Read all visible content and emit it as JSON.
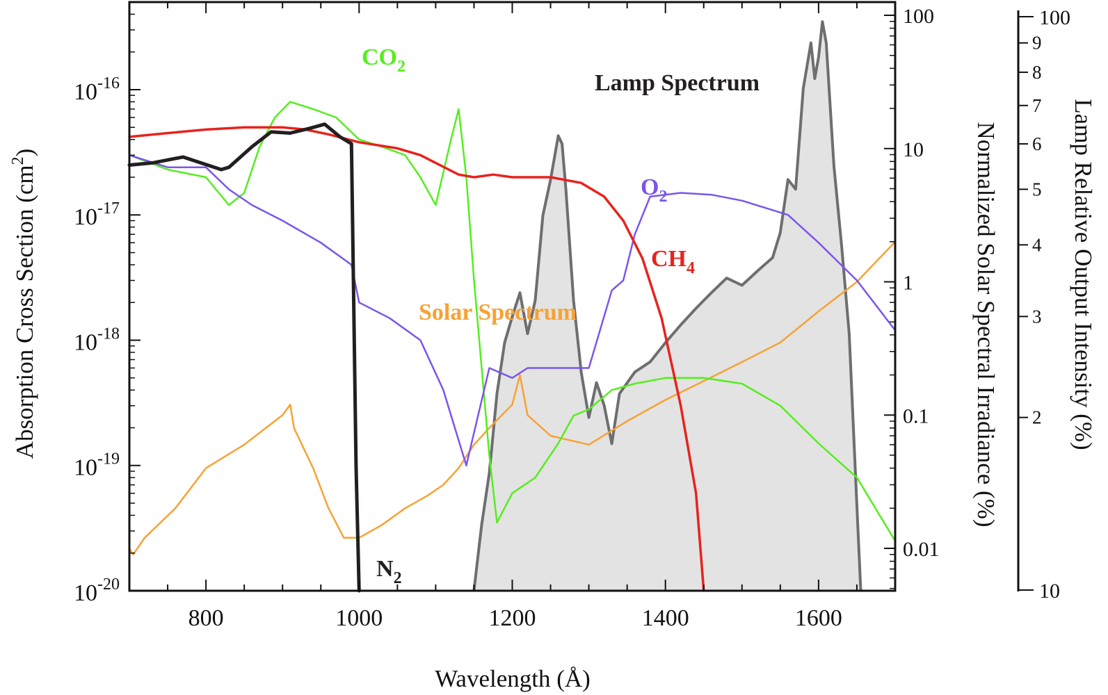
{
  "chart_data": {
    "type": "line",
    "title": "",
    "xlabel": "Wavelength (Å)",
    "ylabel_left": "Absorption Cross Section (cm2)",
    "ylabel_left_parts": {
      "text": "Absorption Cross Section (cm",
      "sup": "2",
      "close": ")"
    },
    "ylabel_right": "Normalized Solar Spectral Irradiance (%)",
    "ylabel_right2": "Lamp Relative Output Intensity (%)",
    "xlim": [
      700,
      1700
    ],
    "ylim_left": [
      1e-20,
      5e-16
    ],
    "ylim_right": [
      0.005,
      100
    ],
    "ylim_right2": [
      10,
      100
    ],
    "x_ticks": [
      800,
      1000,
      1200,
      1400,
      1600
    ],
    "left_ticks": [
      {
        "value": 1e-16,
        "base": "10",
        "exp": "-16"
      },
      {
        "value": 1e-17,
        "base": "10",
        "exp": "-17"
      },
      {
        "value": 1e-18,
        "base": "10",
        "exp": "-18"
      },
      {
        "value": 1e-19,
        "base": "10",
        "exp": "-19"
      },
      {
        "value": 1e-20,
        "base": "10",
        "exp": "-20"
      }
    ],
    "right_ticks": [
      {
        "value": 100,
        "label": "100"
      },
      {
        "value": 10,
        "label": "10"
      },
      {
        "value": 1,
        "label": "1"
      },
      {
        "value": 0.1,
        "label": "0.1"
      },
      {
        "value": 0.01,
        "label": "0.01"
      }
    ],
    "right2_ticks": [
      {
        "value": 100,
        "label": "100"
      },
      {
        "value": 90,
        "label": "9"
      },
      {
        "value": 80,
        "label": "8"
      },
      {
        "value": 70,
        "label": "7"
      },
      {
        "value": 60,
        "label": "6"
      },
      {
        "value": 50,
        "label": "5"
      },
      {
        "value": 40,
        "label": "4"
      },
      {
        "value": 30,
        "label": "3"
      },
      {
        "value": 20,
        "label": "2"
      },
      {
        "value": 10,
        "label": "10"
      }
    ],
    "series": [
      {
        "name": "N2",
        "axis": "left",
        "color": "#231f20",
        "x": [
          700,
          730,
          770,
          820,
          830,
          860,
          885,
          910,
          935,
          955,
          975,
          990,
          996,
          1000
        ],
        "y": [
          2.5e-17,
          2.6e-17,
          2.9e-17,
          2.3e-17,
          2.4e-17,
          3.5e-17,
          4.6e-17,
          4.5e-17,
          4.9e-17,
          5.3e-17,
          4.2e-17,
          3.7e-17,
          1e-19,
          1e-20
        ]
      },
      {
        "name": "CH4",
        "axis": "left",
        "color": "#e8221c",
        "x": [
          700,
          750,
          800,
          850,
          900,
          930,
          960,
          1000,
          1050,
          1080,
          1100,
          1130,
          1150,
          1175,
          1200,
          1250,
          1290,
          1320,
          1345,
          1370,
          1395,
          1420,
          1440,
          1450
        ],
        "y": [
          4.2e-17,
          4.5e-17,
          4.8e-17,
          5e-17,
          5e-17,
          4.8e-17,
          4.4e-17,
          3.8e-17,
          3.4e-17,
          3e-17,
          2.6e-17,
          2.1e-17,
          2e-17,
          2.1e-17,
          2e-17,
          2e-17,
          1.8e-17,
          1.4e-17,
          9e-18,
          4.5e-18,
          1.5e-18,
          3e-19,
          6e-20,
          1e-20
        ]
      },
      {
        "name": "O2",
        "axis": "left",
        "color": "#7b55ec",
        "x": [
          700,
          750,
          800,
          830,
          860,
          900,
          950,
          990,
          1000,
          1040,
          1080,
          1110,
          1140,
          1170,
          1200,
          1220,
          1260,
          1300,
          1330,
          1345,
          1360,
          1380,
          1420,
          1460,
          1500,
          1560,
          1600,
          1650,
          1700
        ],
        "y": [
          3e-17,
          2.4e-17,
          2.4e-17,
          1.6e-17,
          1.2e-17,
          9e-18,
          6e-18,
          4e-18,
          2e-18,
          1.5e-18,
          1e-18,
          4e-19,
          1e-19,
          6e-19,
          5e-19,
          6e-19,
          6e-19,
          6e-19,
          2.5e-18,
          3e-18,
          7e-18,
          1.4e-17,
          1.5e-17,
          1.45e-17,
          1.3e-17,
          1e-17,
          6e-18,
          3e-18,
          1.2e-18
        ]
      },
      {
        "name": "CO2",
        "axis": "left",
        "color": "#55ee1e",
        "x": [
          700,
          750,
          800,
          830,
          850,
          870,
          890,
          910,
          940,
          970,
          1000,
          1030,
          1060,
          1080,
          1100,
          1120,
          1130,
          1140,
          1150,
          1160,
          1170,
          1180,
          1200,
          1230,
          1260,
          1280,
          1300,
          1330,
          1360,
          1400,
          1450,
          1500,
          1550,
          1600,
          1650,
          1700
        ],
        "y": [
          3e-17,
          2.3e-17,
          2e-17,
          1.2e-17,
          1.5e-17,
          3.5e-17,
          6e-17,
          8e-17,
          7e-17,
          6e-17,
          4e-17,
          3.5e-17,
          3e-17,
          2e-17,
          1.2e-17,
          4e-17,
          7e-17,
          2e-17,
          3e-18,
          6e-19,
          1.2e-19,
          3.5e-20,
          6e-20,
          8e-20,
          1.5e-19,
          2.5e-19,
          2.8e-19,
          4e-19,
          4.5e-19,
          5e-19,
          5e-19,
          4.5e-19,
          3e-19,
          1.5e-19,
          8e-20,
          2.5e-20
        ]
      },
      {
        "name": "Solar Spectrum",
        "axis": "right",
        "color": "#f7a234",
        "x": [
          700,
          705,
          720,
          760,
          800,
          850,
          900,
          910,
          915,
          940,
          960,
          980,
          1000,
          1030,
          1060,
          1090,
          1110,
          1130,
          1150,
          1170,
          1200,
          1210,
          1220,
          1250,
          1300,
          1350,
          1400,
          1450,
          1500,
          1550,
          1600,
          1650,
          1700
        ],
        "y": [
          0.01,
          0.009,
          0.012,
          0.02,
          0.04,
          0.06,
          0.1,
          0.12,
          0.08,
          0.04,
          0.02,
          0.012,
          0.012,
          0.015,
          0.02,
          0.025,
          0.03,
          0.04,
          0.06,
          0.08,
          0.12,
          0.2,
          0.1,
          0.07,
          0.06,
          0.09,
          0.13,
          0.18,
          0.25,
          0.35,
          0.6,
          1,
          2
        ]
      },
      {
        "name": "Lamp Spectrum",
        "axis": "right2",
        "color": "#6d6e70",
        "fill": "#e3e3e3",
        "x": [
          1150,
          1160,
          1170,
          1180,
          1190,
          1200,
          1210,
          1220,
          1230,
          1240,
          1250,
          1260,
          1265,
          1270,
          1280,
          1290,
          1300,
          1310,
          1320,
          1330,
          1340,
          1360,
          1380,
          1400,
          1420,
          1440,
          1460,
          1480,
          1500,
          1520,
          1540,
          1550,
          1560,
          1570,
          1580,
          1590,
          1595,
          1600,
          1605,
          1610,
          1620,
          1630,
          1640,
          1650,
          1655
        ],
        "y": [
          10,
          13,
          16,
          22,
          27,
          30,
          33,
          28,
          32,
          45,
          52,
          62,
          60,
          50,
          32,
          24,
          20,
          23,
          21,
          18,
          22,
          24,
          25,
          27,
          29,
          31,
          33,
          35,
          34,
          36,
          38,
          42,
          52,
          50,
          75,
          90,
          78,
          85,
          98,
          90,
          55,
          40,
          28,
          14,
          10
        ]
      }
    ],
    "annotations": [
      {
        "text": "CO",
        "sub": "2",
        "color": "#55ee1e"
      },
      {
        "text": "O",
        "sub": "2",
        "color": "#7b55ec"
      },
      {
        "text": "CH",
        "sub": "4",
        "color": "#e8221c"
      },
      {
        "text": "N",
        "sub": "2",
        "color": "#231f20"
      },
      {
        "text": "Lamp Spectrum",
        "sub": "",
        "color": "#231f20"
      },
      {
        "text": "Solar Spectrum",
        "sub": "",
        "color": "#f7a234"
      }
    ]
  }
}
